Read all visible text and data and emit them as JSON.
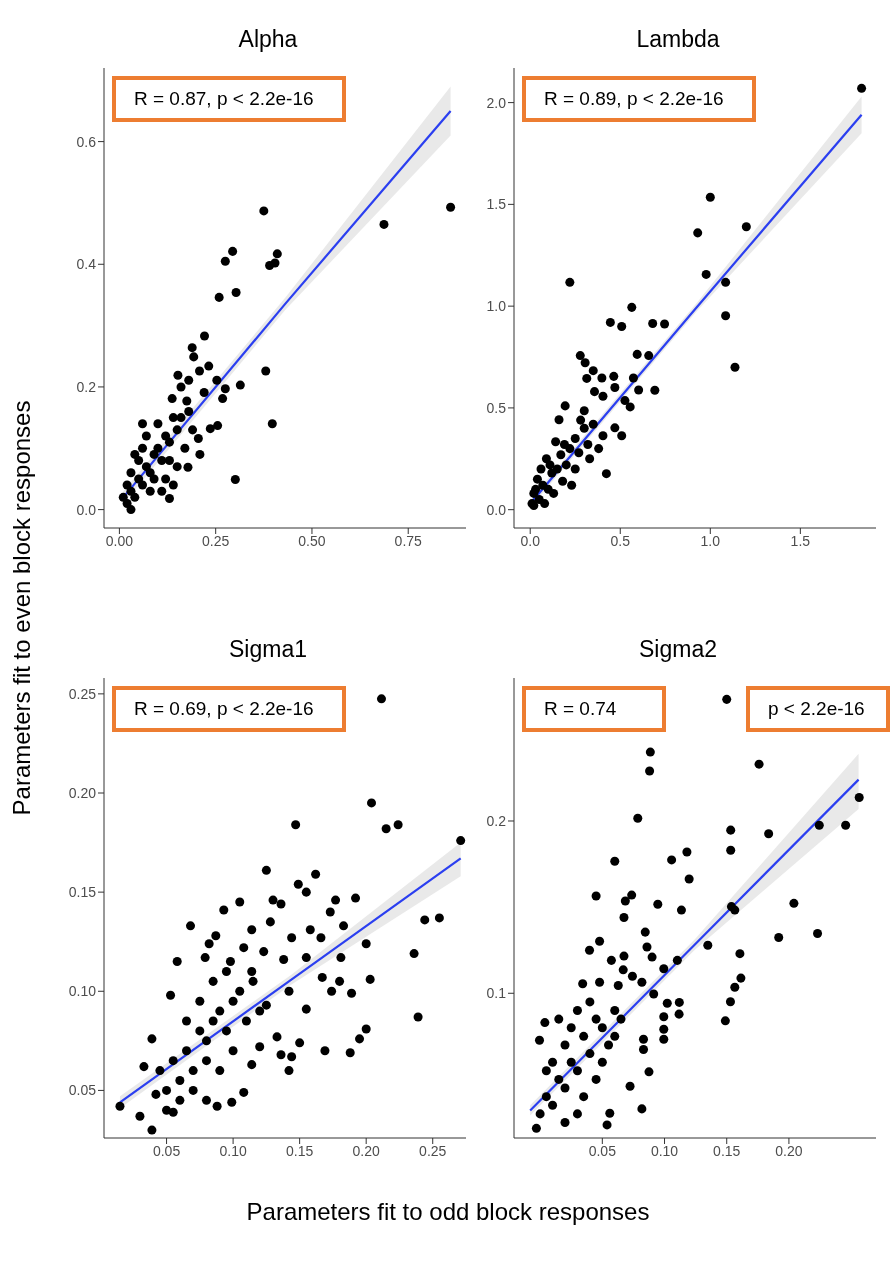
{
  "chart_data": [
    {
      "type": "scatter",
      "title": "Alpha",
      "ylabel": "Parameters fit to even block responses",
      "annotations": [
        "R = 0.87, p < 2.2e-16"
      ],
      "xlim": [
        -0.04,
        0.9
      ],
      "ylim": [
        -0.03,
        0.72
      ],
      "xticks": [
        {
          "value": 0,
          "label": "0.00"
        },
        {
          "value": 0.25,
          "label": "0.25"
        },
        {
          "value": 0.5,
          "label": "0.50"
        },
        {
          "value": 0.75,
          "label": "0.75"
        }
      ],
      "yticks": [
        {
          "value": 0,
          "label": "0.0"
        },
        {
          "value": 0.2,
          "label": "0.2"
        },
        {
          "value": 0.4,
          "label": "0.4"
        },
        {
          "value": 0.6,
          "label": "0.6"
        }
      ],
      "grid": false,
      "series": [
        {
          "marker": "circle",
          "color": "#000000",
          "x": [
            0.86,
            0.687,
            0.375,
            0.294,
            0.275,
            0.41,
            0.39,
            0.404,
            0.259,
            0.303,
            0.221,
            0.189,
            0.193,
            0.232,
            0.208,
            0.38,
            0.152,
            0.314,
            0.253,
            0.275,
            0.18,
            0.22,
            0.137,
            0.268,
            0.175,
            0.397,
            0.06,
            0.301,
            0.13,
            0.255,
            0.236,
            0.178,
            0.209,
            0.205,
            0.02,
            0.03,
            0.04,
            0.05,
            0.03,
            0.06,
            0.07,
            0.05,
            0.08,
            0.09,
            0.1,
            0.11,
            0.12,
            0.13,
            0.14,
            0.15,
            0.16,
            0.1,
            0.12,
            0.08,
            0.04,
            0.02,
            0.06,
            0.09,
            0.11,
            0.07,
            0.13,
            0.17,
            0.15,
            0.19,
            0.03,
            0.01,
            0.14,
            0.16,
            0.18
          ],
          "values": [
            0.493,
            0.465,
            0.487,
            0.421,
            0.405,
            0.417,
            0.398,
            0.402,
            0.346,
            0.354,
            0.283,
            0.264,
            0.249,
            0.234,
            0.226,
            0.226,
            0.219,
            0.203,
            0.211,
            0.197,
            0.211,
            0.191,
            0.181,
            0.181,
            0.177,
            0.14,
            0.14,
            0.049,
            0.018,
            0.137,
            0.132,
            0.069,
            0.09,
            0.116,
            0.01,
            0.03,
            0.02,
            0.05,
            0.06,
            0.04,
            0.07,
            0.08,
            0.06,
            0.09,
            0.1,
            0.08,
            0.12,
            0.11,
            0.15,
            0.13,
            0.15,
            0.14,
            0.05,
            0.03,
            0.09,
            0.04,
            0.1,
            0.05,
            0.03,
            0.12,
            0.08,
            0.1,
            0.07,
            0.13,
            0.0,
            0.02,
            0.04,
            0.2,
            0.16
          ]
        },
        {
          "type": "line",
          "color": "#2b3ff0",
          "x": [
            0.01,
            0.43,
            0.86
          ],
          "values": [
            0.02,
            0.335,
            0.65
          ],
          "lower": [
            0.01,
            0.325,
            0.61
          ],
          "upper": [
            0.03,
            0.345,
            0.69
          ]
        }
      ]
    },
    {
      "type": "scatter",
      "title": "Lambda",
      "annotations": [
        "R = 0.89, p < 2.2e-16"
      ],
      "xlim": [
        -0.09,
        1.92
      ],
      "ylim": [
        -0.09,
        2.17
      ],
      "xticks": [
        {
          "value": 0,
          "label": "0.0"
        },
        {
          "value": 0.5,
          "label": "0.5"
        },
        {
          "value": 1,
          "label": "1.0"
        },
        {
          "value": 1.5,
          "label": "1.5"
        }
      ],
      "yticks": [
        {
          "value": 0,
          "label": "0.0"
        },
        {
          "value": 0.5,
          "label": "0.5"
        },
        {
          "value": 1,
          "label": "1.0"
        },
        {
          "value": 1.5,
          "label": "1.5"
        },
        {
          "value": 2,
          "label": "2.0"
        }
      ],
      "grid": false,
      "series": [
        {
          "marker": "circle",
          "color": "#000000",
          "x": [
            1.84,
            1.0,
            1.2,
            0.93,
            0.977,
            1.085,
            0.22,
            1.085,
            1.137,
            0.564,
            0.445,
            0.508,
            0.68,
            0.746,
            0.594,
            0.658,
            0.278,
            0.305,
            0.35,
            0.398,
            0.314,
            0.464,
            0.573,
            0.692,
            0.602,
            0.47,
            0.357,
            0.404,
            0.194,
            0.16,
            0.423,
            0.141,
            0.508,
            0.47,
            0.404,
            0.526,
            0.555,
            0.3,
            0.02,
            0.03,
            0.05,
            0.04,
            0.07,
            0.06,
            0.1,
            0.12,
            0.09,
            0.15,
            0.17,
            0.2,
            0.22,
            0.25,
            0.27,
            0.3,
            0.32,
            0.35,
            0.13,
            0.18,
            0.25,
            0.08,
            0.02,
            0.28,
            0.33,
            0.38,
            0.23,
            0.11,
            0.01,
            0.19
          ],
          "values": [
            2.07,
            1.535,
            1.39,
            1.36,
            1.156,
            1.117,
            1.117,
            0.953,
            0.7,
            0.994,
            0.92,
            0.9,
            0.915,
            0.912,
            0.763,
            0.757,
            0.757,
            0.722,
            0.683,
            0.647,
            0.645,
            0.655,
            0.647,
            0.587,
            0.588,
            0.6,
            0.58,
            0.557,
            0.51,
            0.442,
            0.177,
            0.334,
            0.363,
            0.402,
            0.363,
            0.536,
            0.505,
            0.486,
            0.02,
            0.1,
            0.05,
            0.15,
            0.12,
            0.2,
            0.1,
            0.18,
            0.25,
            0.2,
            0.27,
            0.22,
            0.3,
            0.35,
            0.28,
            0.4,
            0.32,
            0.42,
            0.08,
            0.14,
            0.2,
            0.03,
            0.08,
            0.44,
            0.25,
            0.3,
            0.12,
            0.22,
            0.03,
            0.32
          ]
        },
        {
          "type": "line",
          "color": "#2b3ff0",
          "x": [
            0.01,
            0.92,
            1.84
          ],
          "values": [
            0.04,
            0.99,
            1.94
          ],
          "lower": [
            0.02,
            0.97,
            1.85
          ],
          "upper": [
            0.06,
            1.01,
            2.03
          ]
        }
      ]
    },
    {
      "type": "scatter",
      "title": "Sigma1",
      "xlabel": "Parameters fit to odd block responses",
      "annotations": [
        "R = 0.69, p < 2.2e-16"
      ],
      "xlim": [
        0.003,
        0.275
      ],
      "ylim": [
        0.026,
        0.258
      ],
      "xticks": [
        {
          "value": 0.05,
          "label": "0.05"
        },
        {
          "value": 0.1,
          "label": "0.10"
        },
        {
          "value": 0.15,
          "label": "0.15"
        },
        {
          "value": 0.2,
          "label": "0.20"
        },
        {
          "value": 0.25,
          "label": "0.25"
        }
      ],
      "yticks": [
        {
          "value": 0.05,
          "label": "0.05"
        },
        {
          "value": 0.1,
          "label": "0.10"
        },
        {
          "value": 0.15,
          "label": "0.15"
        },
        {
          "value": 0.2,
          "label": "0.20"
        },
        {
          "value": 0.25,
          "label": "0.25"
        }
      ],
      "grid": false,
      "series": [
        {
          "marker": "circle",
          "color": "#000000",
          "x": [
            0.2115,
            0.204,
            0.215,
            0.224,
            0.271,
            0.147,
            0.125,
            0.162,
            0.149,
            0.155,
            0.105,
            0.093,
            0.13,
            0.136,
            0.177,
            0.192,
            0.173,
            0.244,
            0.255,
            0.183,
            0.068,
            0.128,
            0.114,
            0.158,
            0.144,
            0.166,
            0.087,
            0.2,
            0.082,
            0.236,
            0.108,
            0.123,
            0.138,
            0.155,
            0.181,
            0.058,
            0.079,
            0.098,
            0.203,
            0.167,
            0.18,
            0.239,
            0.2,
            0.195,
            0.188,
            0.169,
            0.15,
            0.155,
            0.189,
            0.174,
            0.142,
            0.114,
            0.125,
            0.133,
            0.12,
            0.114,
            0.142,
            0.144,
            0.136,
            0.108,
            0.099,
            0.088,
            0.015,
            0.039,
            0.03,
            0.055,
            0.053,
            0.039,
            0.033,
            0.05,
            0.06,
            0.07,
            0.055,
            0.065,
            0.075,
            0.08,
            0.085,
            0.09,
            0.06,
            0.07,
            0.045,
            0.08,
            0.095,
            0.1,
            0.105,
            0.11,
            0.09,
            0.1,
            0.075,
            0.085,
            0.065,
            0.12,
            0.115,
            0.095,
            0.05,
            0.042,
            0.08
          ],
          "values": [
            0.2475,
            0.195,
            0.182,
            0.184,
            0.176,
            0.184,
            0.161,
            0.159,
            0.154,
            0.15,
            0.145,
            0.141,
            0.146,
            0.144,
            0.146,
            0.147,
            0.14,
            0.136,
            0.137,
            0.133,
            0.133,
            0.135,
            0.131,
            0.131,
            0.127,
            0.127,
            0.128,
            0.124,
            0.124,
            0.119,
            0.122,
            0.12,
            0.116,
            0.117,
            0.117,
            0.115,
            0.117,
            0.115,
            0.106,
            0.107,
            0.105,
            0.087,
            0.081,
            0.076,
            0.069,
            0.07,
            0.074,
            0.091,
            0.099,
            0.1,
            0.1,
            0.11,
            0.093,
            0.077,
            0.072,
            0.063,
            0.06,
            0.067,
            0.068,
            0.049,
            0.044,
            0.042,
            0.042,
            0.03,
            0.037,
            0.039,
            0.098,
            0.076,
            0.062,
            0.05,
            0.055,
            0.06,
            0.065,
            0.07,
            0.08,
            0.075,
            0.085,
            0.09,
            0.045,
            0.05,
            0.06,
            0.065,
            0.08,
            0.095,
            0.1,
            0.085,
            0.06,
            0.07,
            0.095,
            0.105,
            0.085,
            0.09,
            0.105,
            0.11,
            0.04,
            0.048,
            0.045
          ]
        },
        {
          "type": "line",
          "color": "#2b3ff0",
          "x": [
            0.015,
            0.143,
            0.271
          ],
          "values": [
            0.044,
            0.1055,
            0.167
          ],
          "lower": [
            0.041,
            0.103,
            0.158
          ],
          "upper": [
            0.047,
            0.108,
            0.175
          ]
        }
      ]
    },
    {
      "type": "scatter",
      "title": "Sigma2",
      "annotations": [
        "R = 0.74",
        "p < 2.2e-16"
      ],
      "xlim": [
        -0.021,
        0.27
      ],
      "ylim": [
        0.016,
        0.283
      ],
      "xticks": [
        {
          "value": 0.05,
          "label": "0.05"
        },
        {
          "value": 0.1,
          "label": "0.10"
        },
        {
          "value": 0.15,
          "label": "0.15"
        },
        {
          "value": 0.2,
          "label": "0.20"
        }
      ],
      "yticks": [
        0.1,
        0.2
      ],
      "grid": false,
      "series": [
        {
          "marker": "circle",
          "color": "#000000",
          "x": [
            0.15,
            0.0886,
            0.088,
            0.176,
            0.0785,
            0.2565,
            0.2456,
            0.2244,
            0.1837,
            0.1532,
            0.1532,
            0.118,
            0.1057,
            0.06,
            0.1198,
            0.045,
            0.0736,
            0.0685,
            0.0946,
            0.1136,
            0.1538,
            0.1565,
            0.204,
            0.0674,
            0.0845,
            0.1918,
            0.223,
            0.0478,
            0.0397,
            0.0859,
            0.1348,
            0.1606,
            0.1103,
            0.0573,
            0.0674,
            0.09,
            0.0994,
            0.0668,
            0.0742,
            0.0818,
            0.1614,
            0.1565,
            0.0342,
            0.0478,
            0.0628,
            0.0913,
            0.1022,
            0.1119,
            0.153,
            0.1489,
            0.1117,
            0.0994,
            0.0994,
            0.0994,
            0.0831,
            0.0831,
            0.0038,
            -0.0005,
            0.0875,
            0.0723,
            0.0818,
            0.056,
            0.0538,
            -0.003,
            0.0,
            0.005,
            0.01,
            0.015,
            0.02,
            0.025,
            0.03,
            0.01,
            0.02,
            0.035,
            0.04,
            0.045,
            0.03,
            0.05,
            0.055,
            0.06,
            0.04,
            0.015,
            0.025,
            0.05,
            0.035,
            0.045,
            0.06,
            0.065,
            0.005,
            0.03,
            0.02
          ],
          "values": [
            0.2706,
            0.24,
            0.229,
            0.233,
            0.2016,
            0.2136,
            0.1975,
            0.1975,
            0.1926,
            0.1947,
            0.183,
            0.182,
            0.1774,
            0.1766,
            0.1663,
            0.1565,
            0.157,
            0.1536,
            0.1517,
            0.1483,
            0.1503,
            0.1483,
            0.1522,
            0.144,
            0.1355,
            0.1324,
            0.1347,
            0.1302,
            0.125,
            0.1269,
            0.1279,
            0.123,
            0.1191,
            0.1191,
            0.1216,
            0.121,
            0.1142,
            0.1136,
            0.1099,
            0.1064,
            0.1088,
            0.1035,
            0.1055,
            0.1064,
            0.1045,
            0.0996,
            0.0942,
            0.0947,
            0.0951,
            0.084,
            0.0879,
            0.0864,
            0.0791,
            0.0733,
            0.0733,
            0.0674,
            0.083,
            0.0727,
            0.0544,
            0.046,
            0.0329,
            0.0304,
            0.0236,
            0.0216,
            0.03,
            0.04,
            0.035,
            0.05,
            0.045,
            0.06,
            0.055,
            0.06,
            0.07,
            0.075,
            0.065,
            0.085,
            0.09,
            0.08,
            0.07,
            0.09,
            0.095,
            0.085,
            0.08,
            0.06,
            0.04,
            0.05,
            0.075,
            0.085,
            0.055,
            0.03,
            0.025
          ]
        },
        {
          "type": "line",
          "color": "#2b3ff0",
          "x": [
            -0.008,
            0.124,
            0.256
          ],
          "values": [
            0.032,
            0.128,
            0.224
          ],
          "lower": [
            0.029,
            0.125,
            0.207
          ],
          "upper": [
            0.035,
            0.131,
            0.239
          ]
        }
      ]
    }
  ]
}
